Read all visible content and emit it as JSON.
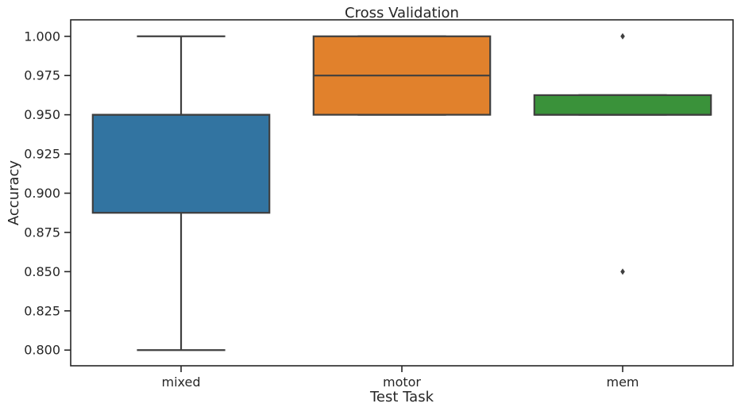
{
  "chart_data": {
    "type": "box",
    "title": "Cross Validation",
    "xlabel": "Test Task",
    "ylabel": "Accuracy",
    "ylim": [
      0.79,
      1.0105
    ],
    "yticks": [
      "0.800",
      "0.825",
      "0.850",
      "0.875",
      "0.900",
      "0.925",
      "0.950",
      "0.975",
      "1.000"
    ],
    "categories": [
      "mixed",
      "motor",
      "mem"
    ],
    "grid": false,
    "boxes": [
      {
        "category": "mixed",
        "whisker_low": 0.8,
        "q1": 0.8875,
        "median": 0.95,
        "q3": 0.95,
        "whisker_high": 1.0,
        "outliers": [],
        "color": "#3274a1"
      },
      {
        "category": "motor",
        "whisker_low": 0.95,
        "q1": 0.95,
        "median": 0.975,
        "q3": 1.0,
        "whisker_high": 1.0,
        "outliers": [],
        "color": "#e1812c"
      },
      {
        "category": "mem",
        "whisker_low": 0.95,
        "q1": 0.95,
        "median": 0.95,
        "q3": 0.9625,
        "whisker_high": 0.9625,
        "outliers": [
          1.0,
          0.85
        ],
        "color": "#3a923a"
      }
    ],
    "line_color": "#3f3f3f"
  }
}
